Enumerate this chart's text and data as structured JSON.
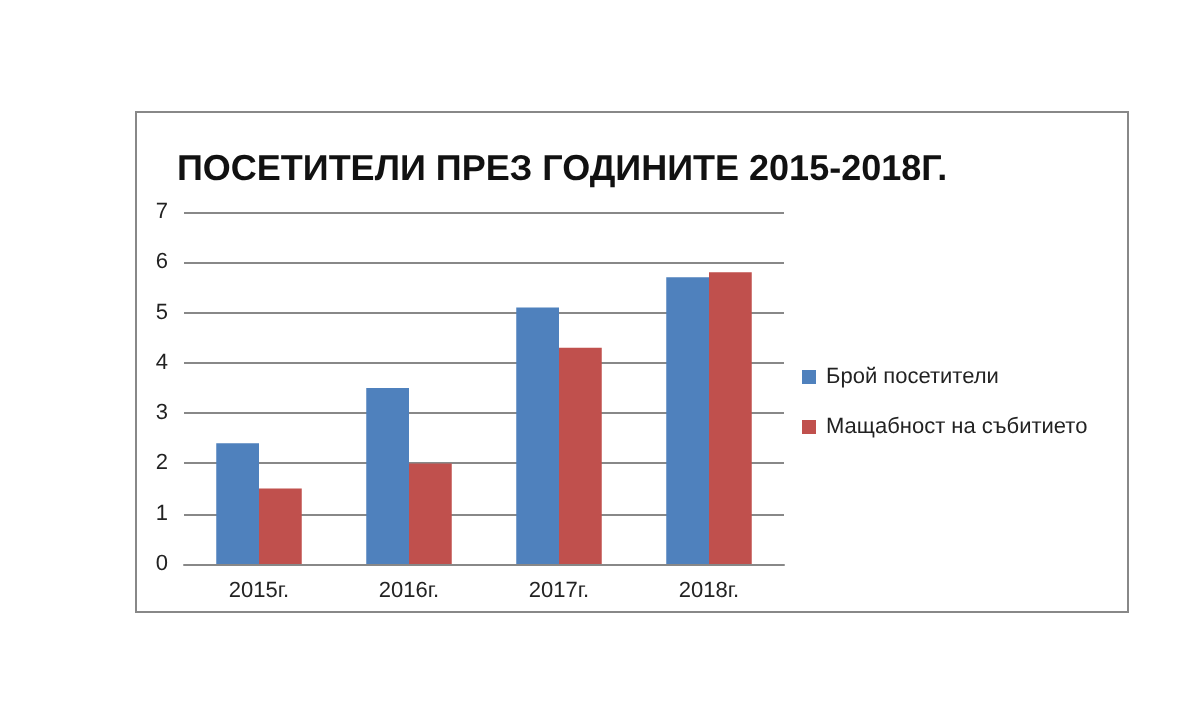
{
  "chart_data": {
    "type": "bar",
    "title": "ПОСЕТИТЕЛИ ПРЕЗ ГОДИНИТЕ 2015-2018Г.",
    "categories": [
      "2015г.",
      "2016г.",
      "2017г.",
      "2018г."
    ],
    "series": [
      {
        "name": "Брой посетители",
        "color": "#4f81bd",
        "values": [
          2.4,
          3.5,
          5.1,
          5.7
        ]
      },
      {
        "name": "Мащабност на събитието",
        "color": "#c0504d",
        "values": [
          1.5,
          2.0,
          4.3,
          5.8
        ]
      }
    ],
    "ylim": [
      0,
      7
    ],
    "yticks": [
      0,
      1,
      2,
      3,
      4,
      5,
      6,
      7
    ],
    "grid": "y",
    "legend": "right"
  }
}
